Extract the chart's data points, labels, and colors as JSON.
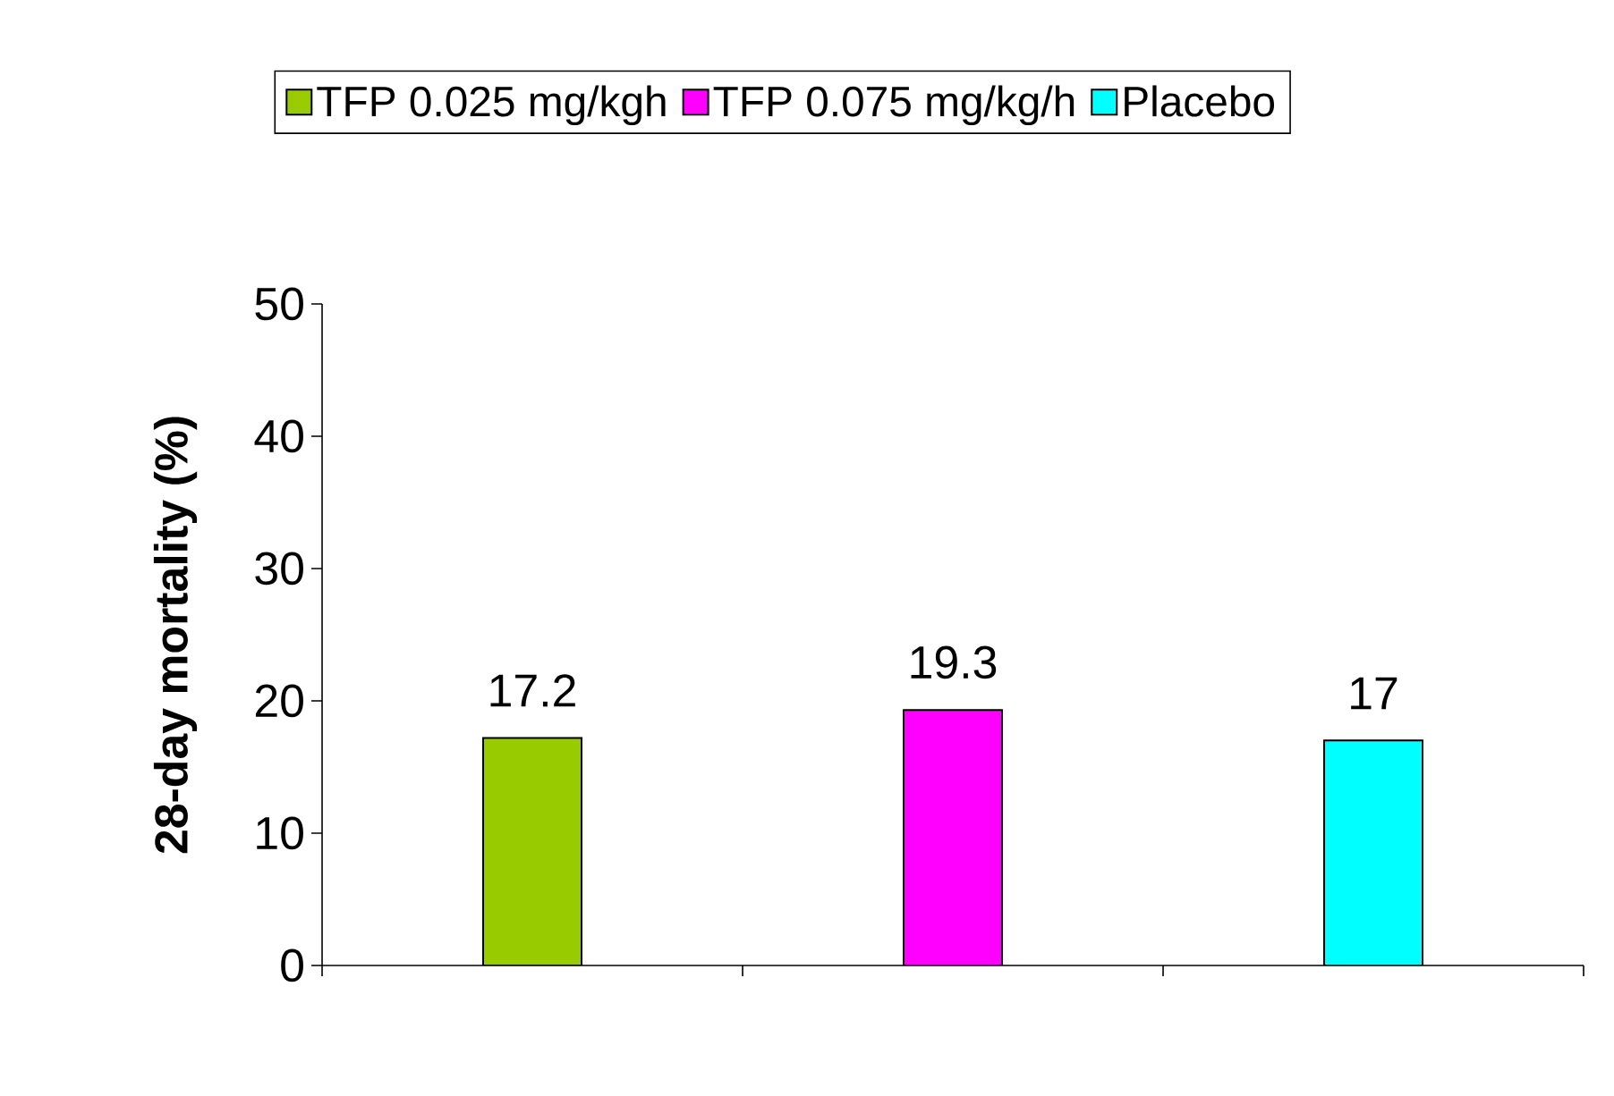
{
  "chart_data": {
    "type": "bar",
    "ylabel": "28-day mortality (%)",
    "categories": [
      null,
      null,
      null
    ],
    "series": [
      {
        "name": "TFP 0.025 mg/kgh",
        "color": "#99cc00",
        "values": [
          17.2,
          null,
          null
        ]
      },
      {
        "name": "TFP 0.075 mg/kg/h",
        "color": "#ff00ff",
        "values": [
          null,
          19.3,
          null
        ]
      },
      {
        "name": "Placebo",
        "color": "#00ffff",
        "values": [
          null,
          null,
          17
        ]
      }
    ],
    "ylim": [
      0,
      50
    ],
    "yticks": [
      0,
      10,
      20,
      30,
      40,
      50
    ],
    "data_labels": true,
    "legend": "top",
    "grid": false
  }
}
